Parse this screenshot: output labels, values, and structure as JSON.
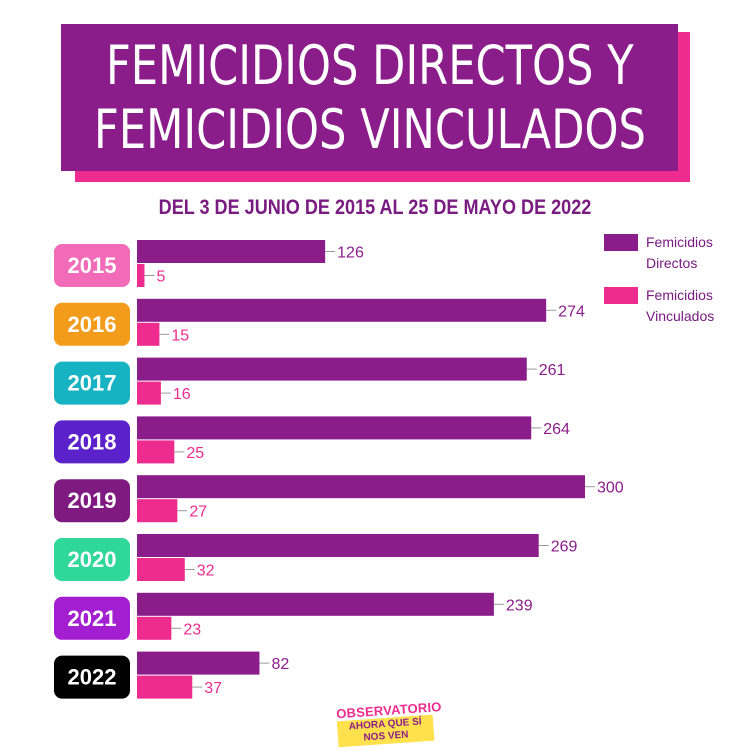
{
  "title": {
    "line1": "FEMICIDIOS DIRECTOS Y",
    "line2": "FEMICIDIOS VINCULADOS"
  },
  "subtitle": "DEL 3 DE JUNIO DE 2015 AL 25 DE MAYO DE 2022",
  "logo": {
    "top": "OBSERVATORIO",
    "bottom": "AHORA QUE SÍ NOS VEN"
  },
  "colors": {
    "directos": "#8b1d8b",
    "vinculados": "#ee2b8f"
  },
  "chart_data": {
    "type": "bar",
    "orientation": "horizontal",
    "categories": [
      "2015",
      "2016",
      "2017",
      "2018",
      "2019",
      "2020",
      "2021",
      "2022"
    ],
    "category_colors": [
      "#f26bb8",
      "#f39c1c",
      "#18b3c3",
      "#5b22cc",
      "#7f1a81",
      "#2fd89a",
      "#a21ed0",
      "#000000"
    ],
    "series": [
      {
        "name": "Femicidios Directos",
        "color": "#8b1d8b",
        "values": [
          126,
          274,
          261,
          264,
          300,
          269,
          239,
          82
        ]
      },
      {
        "name": "Femicidios Vinculados",
        "color": "#ee2b8f",
        "values": [
          5,
          15,
          16,
          25,
          27,
          32,
          23,
          37
        ]
      }
    ],
    "xlim": [
      0,
      300
    ],
    "grid": false,
    "legend": "top-right",
    "data_labels": true
  }
}
